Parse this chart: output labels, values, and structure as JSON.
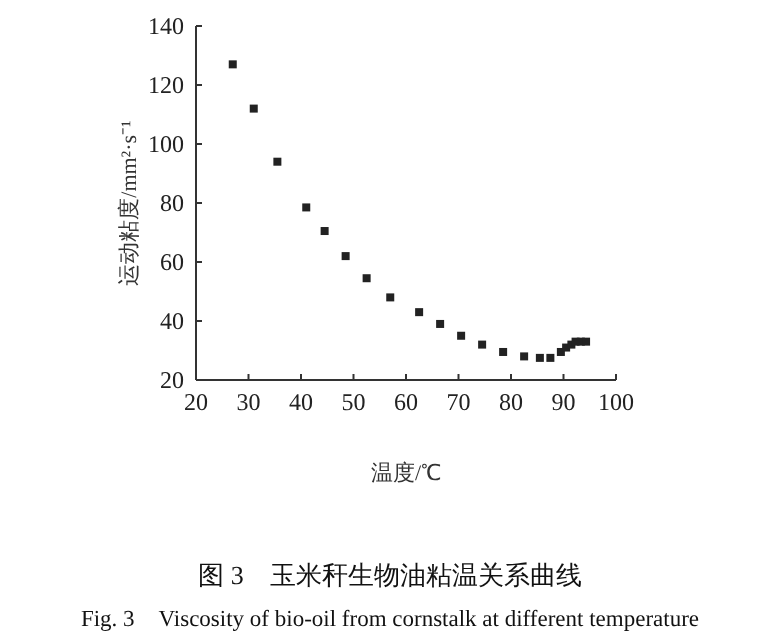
{
  "chart_data": {
    "type": "scatter",
    "xlabel": "温度/℃",
    "ylabel": "运动粘度/mm²·s⁻¹",
    "annotations": [
      "图 3　玉米秆生物油粘温关系曲线",
      "Fig. 3　Viscosity of bio-oil from cornstalk at different temperature"
    ],
    "x": [
      27,
      31,
      35.5,
      41,
      44.5,
      48.5,
      52.5,
      57,
      62.5,
      66.5,
      70.5,
      74.5,
      78.5,
      82.5,
      85.5,
      87.5,
      89.5,
      90.5,
      91.5,
      92.3,
      93.3,
      94.3
    ],
    "series": [
      {
        "color": "#222222",
        "values": [
          127,
          112,
          94,
          78.5,
          70.5,
          62,
          54.5,
          48,
          43,
          39,
          35,
          32,
          29.5,
          28,
          27.5,
          27.5,
          29.5,
          31,
          32,
          33,
          33,
          33
        ]
      }
    ],
    "marker": "square",
    "xlim": [
      20,
      100
    ],
    "ylim": [
      20,
      140
    ],
    "xticks": [
      20,
      30,
      40,
      50,
      60,
      70,
      80,
      90,
      100
    ],
    "yticks": [
      20,
      40,
      60,
      80,
      100,
      120,
      140
    ]
  }
}
